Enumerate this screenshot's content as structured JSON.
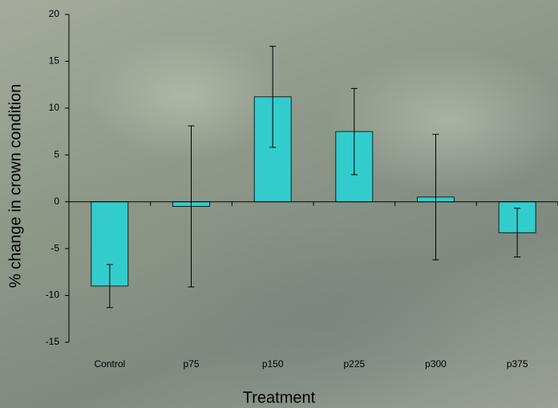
{
  "chart_data": {
    "type": "bar",
    "x_label": "Treatment",
    "y_label": "% change in crown condition",
    "categories": [
      "Control",
      "p75",
      "p150",
      "p225",
      "p300",
      "p375"
    ],
    "values": [
      -9.0,
      -0.5,
      11.2,
      7.5,
      0.5,
      -3.3
    ],
    "errors": [
      2.3,
      8.6,
      5.4,
      4.6,
      6.7,
      2.6
    ],
    "color": "#33cccc",
    "ylim": [
      -15,
      20
    ],
    "yticks": [
      -15,
      -10,
      -5,
      0,
      5,
      10,
      15,
      20
    ],
    "grid": false
  }
}
